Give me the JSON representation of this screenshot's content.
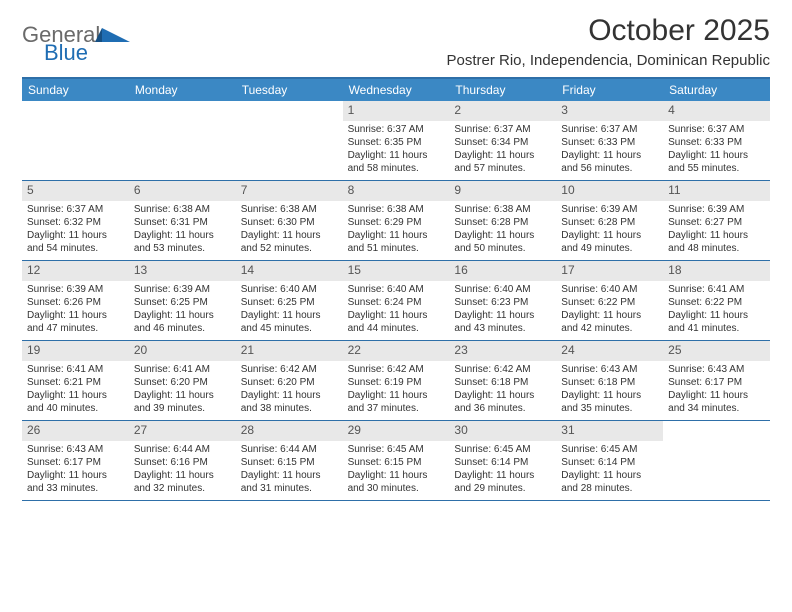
{
  "brand": {
    "text1": "General",
    "text2": "Blue",
    "color1": "#6a6a6a",
    "color2": "#1f6db3"
  },
  "title": "October 2025",
  "location": "Postrer Rio, Independencia, Dominican Republic",
  "weekdays": [
    "Sunday",
    "Monday",
    "Tuesday",
    "Wednesday",
    "Thursday",
    "Friday",
    "Saturday"
  ],
  "colors": {
    "header_bar": "#3b88c4",
    "rule": "#2e6fa8",
    "daynum_bg": "#e8e8e8",
    "text": "#333333"
  },
  "weeks": [
    [
      {
        "n": "",
        "sr": "",
        "ss": "",
        "dl1": "",
        "dl2": ""
      },
      {
        "n": "",
        "sr": "",
        "ss": "",
        "dl1": "",
        "dl2": ""
      },
      {
        "n": "",
        "sr": "",
        "ss": "",
        "dl1": "",
        "dl2": ""
      },
      {
        "n": "1",
        "sr": "Sunrise: 6:37 AM",
        "ss": "Sunset: 6:35 PM",
        "dl1": "Daylight: 11 hours",
        "dl2": "and 58 minutes."
      },
      {
        "n": "2",
        "sr": "Sunrise: 6:37 AM",
        "ss": "Sunset: 6:34 PM",
        "dl1": "Daylight: 11 hours",
        "dl2": "and 57 minutes."
      },
      {
        "n": "3",
        "sr": "Sunrise: 6:37 AM",
        "ss": "Sunset: 6:33 PM",
        "dl1": "Daylight: 11 hours",
        "dl2": "and 56 minutes."
      },
      {
        "n": "4",
        "sr": "Sunrise: 6:37 AM",
        "ss": "Sunset: 6:33 PM",
        "dl1": "Daylight: 11 hours",
        "dl2": "and 55 minutes."
      }
    ],
    [
      {
        "n": "5",
        "sr": "Sunrise: 6:37 AM",
        "ss": "Sunset: 6:32 PM",
        "dl1": "Daylight: 11 hours",
        "dl2": "and 54 minutes."
      },
      {
        "n": "6",
        "sr": "Sunrise: 6:38 AM",
        "ss": "Sunset: 6:31 PM",
        "dl1": "Daylight: 11 hours",
        "dl2": "and 53 minutes."
      },
      {
        "n": "7",
        "sr": "Sunrise: 6:38 AM",
        "ss": "Sunset: 6:30 PM",
        "dl1": "Daylight: 11 hours",
        "dl2": "and 52 minutes."
      },
      {
        "n": "8",
        "sr": "Sunrise: 6:38 AM",
        "ss": "Sunset: 6:29 PM",
        "dl1": "Daylight: 11 hours",
        "dl2": "and 51 minutes."
      },
      {
        "n": "9",
        "sr": "Sunrise: 6:38 AM",
        "ss": "Sunset: 6:28 PM",
        "dl1": "Daylight: 11 hours",
        "dl2": "and 50 minutes."
      },
      {
        "n": "10",
        "sr": "Sunrise: 6:39 AM",
        "ss": "Sunset: 6:28 PM",
        "dl1": "Daylight: 11 hours",
        "dl2": "and 49 minutes."
      },
      {
        "n": "11",
        "sr": "Sunrise: 6:39 AM",
        "ss": "Sunset: 6:27 PM",
        "dl1": "Daylight: 11 hours",
        "dl2": "and 48 minutes."
      }
    ],
    [
      {
        "n": "12",
        "sr": "Sunrise: 6:39 AM",
        "ss": "Sunset: 6:26 PM",
        "dl1": "Daylight: 11 hours",
        "dl2": "and 47 minutes."
      },
      {
        "n": "13",
        "sr": "Sunrise: 6:39 AM",
        "ss": "Sunset: 6:25 PM",
        "dl1": "Daylight: 11 hours",
        "dl2": "and 46 minutes."
      },
      {
        "n": "14",
        "sr": "Sunrise: 6:40 AM",
        "ss": "Sunset: 6:25 PM",
        "dl1": "Daylight: 11 hours",
        "dl2": "and 45 minutes."
      },
      {
        "n": "15",
        "sr": "Sunrise: 6:40 AM",
        "ss": "Sunset: 6:24 PM",
        "dl1": "Daylight: 11 hours",
        "dl2": "and 44 minutes."
      },
      {
        "n": "16",
        "sr": "Sunrise: 6:40 AM",
        "ss": "Sunset: 6:23 PM",
        "dl1": "Daylight: 11 hours",
        "dl2": "and 43 minutes."
      },
      {
        "n": "17",
        "sr": "Sunrise: 6:40 AM",
        "ss": "Sunset: 6:22 PM",
        "dl1": "Daylight: 11 hours",
        "dl2": "and 42 minutes."
      },
      {
        "n": "18",
        "sr": "Sunrise: 6:41 AM",
        "ss": "Sunset: 6:22 PM",
        "dl1": "Daylight: 11 hours",
        "dl2": "and 41 minutes."
      }
    ],
    [
      {
        "n": "19",
        "sr": "Sunrise: 6:41 AM",
        "ss": "Sunset: 6:21 PM",
        "dl1": "Daylight: 11 hours",
        "dl2": "and 40 minutes."
      },
      {
        "n": "20",
        "sr": "Sunrise: 6:41 AM",
        "ss": "Sunset: 6:20 PM",
        "dl1": "Daylight: 11 hours",
        "dl2": "and 39 minutes."
      },
      {
        "n": "21",
        "sr": "Sunrise: 6:42 AM",
        "ss": "Sunset: 6:20 PM",
        "dl1": "Daylight: 11 hours",
        "dl2": "and 38 minutes."
      },
      {
        "n": "22",
        "sr": "Sunrise: 6:42 AM",
        "ss": "Sunset: 6:19 PM",
        "dl1": "Daylight: 11 hours",
        "dl2": "and 37 minutes."
      },
      {
        "n": "23",
        "sr": "Sunrise: 6:42 AM",
        "ss": "Sunset: 6:18 PM",
        "dl1": "Daylight: 11 hours",
        "dl2": "and 36 minutes."
      },
      {
        "n": "24",
        "sr": "Sunrise: 6:43 AM",
        "ss": "Sunset: 6:18 PM",
        "dl1": "Daylight: 11 hours",
        "dl2": "and 35 minutes."
      },
      {
        "n": "25",
        "sr": "Sunrise: 6:43 AM",
        "ss": "Sunset: 6:17 PM",
        "dl1": "Daylight: 11 hours",
        "dl2": "and 34 minutes."
      }
    ],
    [
      {
        "n": "26",
        "sr": "Sunrise: 6:43 AM",
        "ss": "Sunset: 6:17 PM",
        "dl1": "Daylight: 11 hours",
        "dl2": "and 33 minutes."
      },
      {
        "n": "27",
        "sr": "Sunrise: 6:44 AM",
        "ss": "Sunset: 6:16 PM",
        "dl1": "Daylight: 11 hours",
        "dl2": "and 32 minutes."
      },
      {
        "n": "28",
        "sr": "Sunrise: 6:44 AM",
        "ss": "Sunset: 6:15 PM",
        "dl1": "Daylight: 11 hours",
        "dl2": "and 31 minutes."
      },
      {
        "n": "29",
        "sr": "Sunrise: 6:45 AM",
        "ss": "Sunset: 6:15 PM",
        "dl1": "Daylight: 11 hours",
        "dl2": "and 30 minutes."
      },
      {
        "n": "30",
        "sr": "Sunrise: 6:45 AM",
        "ss": "Sunset: 6:14 PM",
        "dl1": "Daylight: 11 hours",
        "dl2": "and 29 minutes."
      },
      {
        "n": "31",
        "sr": "Sunrise: 6:45 AM",
        "ss": "Sunset: 6:14 PM",
        "dl1": "Daylight: 11 hours",
        "dl2": "and 28 minutes."
      },
      {
        "n": "",
        "sr": "",
        "ss": "",
        "dl1": "",
        "dl2": ""
      }
    ]
  ]
}
